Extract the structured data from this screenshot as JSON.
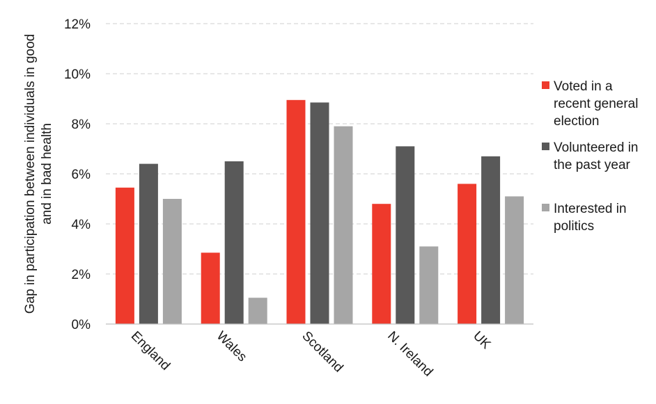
{
  "chart_data": {
    "type": "bar",
    "categories": [
      "England",
      "Wales",
      "Scotland",
      "N. Ireland",
      "UK"
    ],
    "series": [
      {
        "name": "Voted in a recent general election",
        "legend_lines": [
          "Voted in a",
          "recent general",
          "election"
        ],
        "color": "#ee3a2c",
        "values": [
          5.45,
          2.85,
          8.95,
          4.8,
          5.6
        ]
      },
      {
        "name": "Volunteered in the past year",
        "legend_lines": [
          "Volunteered in",
          "the past year"
        ],
        "color": "#595959",
        "values": [
          6.4,
          6.5,
          8.85,
          7.1,
          6.7
        ]
      },
      {
        "name": "Interested in politics",
        "legend_lines": [
          "Interested in",
          "politics"
        ],
        "color": "#a6a6a6",
        "values": [
          5.0,
          1.05,
          7.9,
          3.1,
          5.1
        ]
      }
    ],
    "ylabel_lines": [
      "Gap in participation between individuals in good",
      "and in bad health"
    ],
    "ylim": [
      0,
      12
    ],
    "yticks": [
      "0%",
      "2%",
      "4%",
      "6%",
      "8%",
      "10%",
      "12%"
    ],
    "grid": true,
    "legend_position": "right"
  }
}
